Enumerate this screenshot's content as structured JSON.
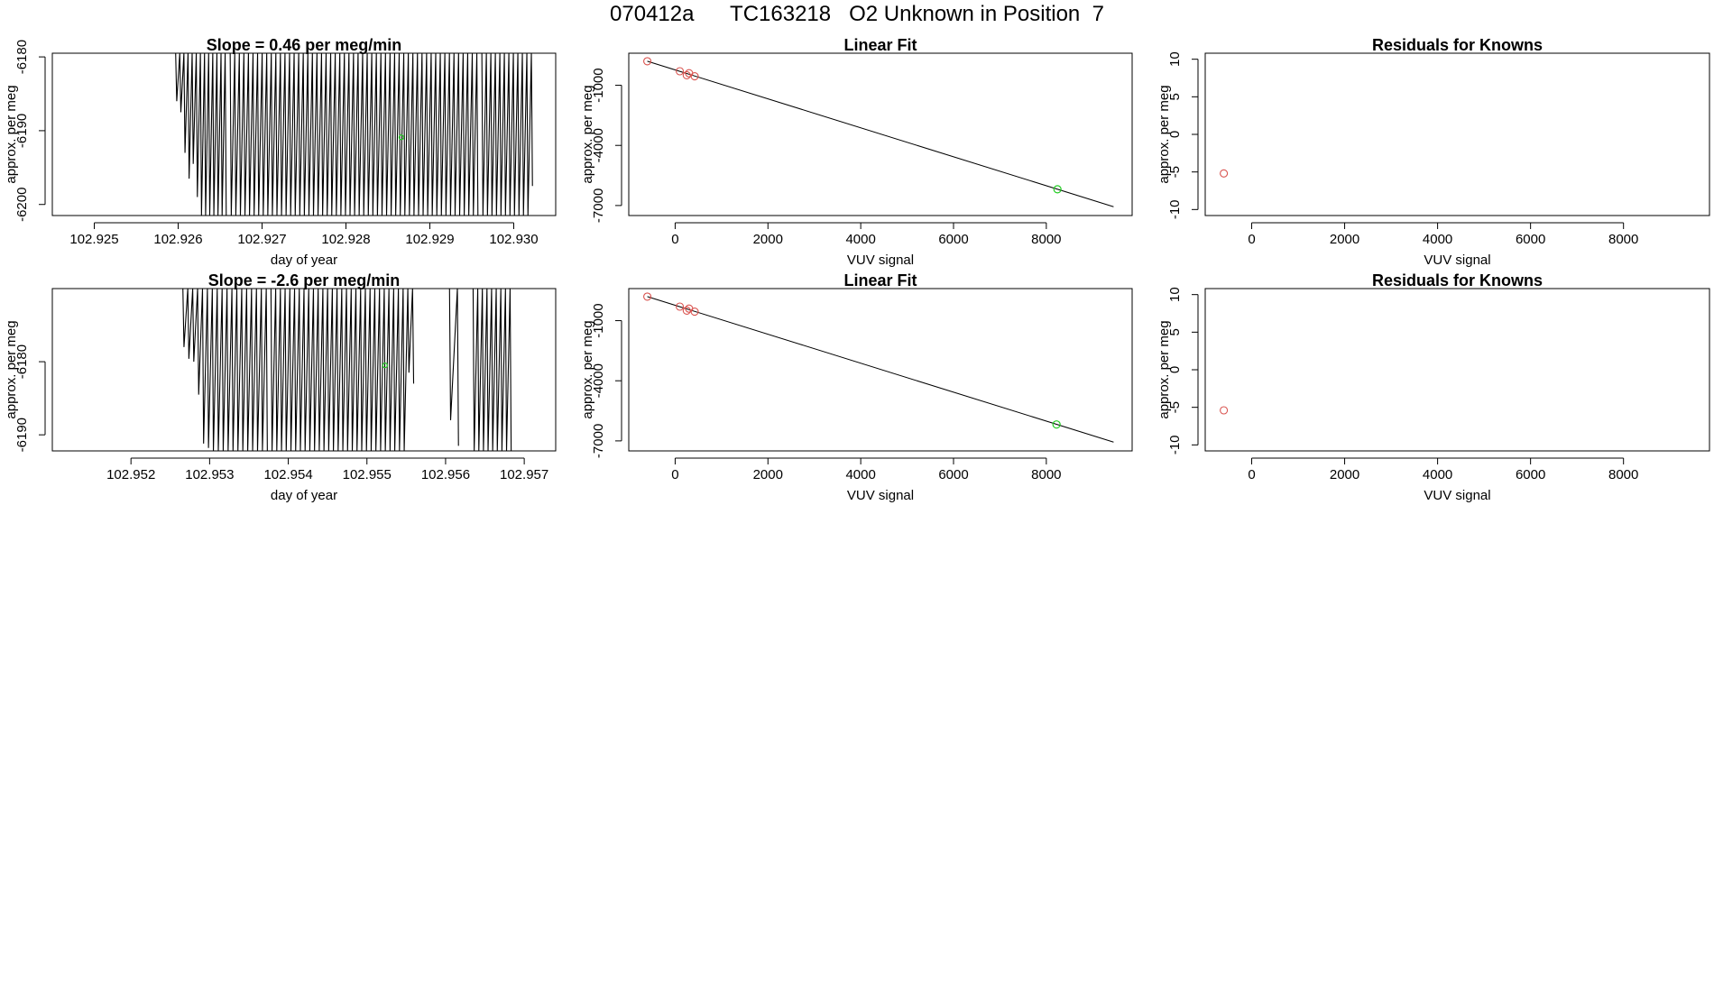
{
  "page_title": "070412a      TC163218   O2 Unknown in Position  7",
  "colors": {
    "axis": "#000000",
    "known_point": "#d9534f",
    "unknown_point": "#22cc22",
    "line": "#000000"
  },
  "chart_data": [
    {
      "id": "timeseries-1",
      "type": "line",
      "title": "Slope =  0.46  per meg/min",
      "xlabel": "day of year",
      "ylabel": "approx. per meg",
      "xlim": [
        102.9245,
        102.9305
      ],
      "ylim": [
        -6201.5,
        -6179.5
      ],
      "xticks": [
        102.925,
        102.926,
        102.927,
        102.928,
        102.929,
        102.93
      ],
      "xtick_labels": [
        "102.925",
        "102.926",
        "102.927",
        "102.928",
        "102.929",
        "102.930"
      ],
      "yticks": [
        -6180,
        -6190,
        -6200
      ],
      "ytick_labels": [
        "-6180",
        "-6190",
        "-6200"
      ],
      "series": [
        {
          "name": "segment-a",
          "x_start": 102.92597,
          "x_end": 102.92656,
          "n": 13,
          "values": [
            -6186,
            -6187.5,
            -6193,
            -6196.5,
            -6194.5,
            -6199,
            -6201.5,
            -6201.5,
            -6201.5,
            -6201.5,
            -6201.5,
            -6201.5,
            -6201.5
          ]
        },
        {
          "name": "segment-b",
          "x_start": 102.92662,
          "x_end": 102.92956,
          "n": 55,
          "values": [
            -6201.5
          ]
        },
        {
          "name": "segment-c",
          "x_start": 102.92962,
          "x_end": 102.93021,
          "n": 12,
          "values": [
            -6201.5,
            -6201.5,
            -6201.5,
            -6201.5,
            -6201.5,
            -6201.5,
            -6201.5,
            -6201.5,
            -6201.5,
            -6201.5,
            -6201.5,
            -6197.5
          ]
        }
      ],
      "marker": {
        "x": 102.92866,
        "y": -6190.9
      }
    },
    {
      "id": "linear-fit-1",
      "type": "scatter",
      "title": "Linear Fit",
      "xlabel": "VUV signal",
      "ylabel": "approx. per meg",
      "xlim": [
        -1000,
        9850
      ],
      "ylim": [
        -7500,
        600
      ],
      "xticks": [
        0,
        2000,
        4000,
        6000,
        8000
      ],
      "xtick_labels": [
        "0",
        "2000",
        "4000",
        "6000",
        "8000"
      ],
      "yticks": [
        -1000,
        -4000,
        -7000
      ],
      "ytick_labels": [
        "-1000",
        "-4000",
        "-7000"
      ],
      "knowns": [
        {
          "x": -600,
          "y": 200
        },
        {
          "x": 100,
          "y": -300
        },
        {
          "x": 250,
          "y": -500
        },
        {
          "x": 300,
          "y": -400
        },
        {
          "x": 420,
          "y": -550
        }
      ],
      "unknown": {
        "x": 8240,
        "y": -6190
      },
      "fit_line": {
        "x1": -600,
        "y1": 200,
        "x2": 9450,
        "y2": -7060
      }
    },
    {
      "id": "residuals-1",
      "type": "scatter",
      "title": "Residuals for Knowns",
      "xlabel": "VUV signal",
      "ylabel": "approx. per meg",
      "xlim": [
        -1000,
        9850
      ],
      "ylim": [
        -10.8,
        10.8
      ],
      "xticks": [
        0,
        2000,
        4000,
        6000,
        8000
      ],
      "xtick_labels": [
        "0",
        "2000",
        "4000",
        "6000",
        "8000"
      ],
      "yticks": [
        10,
        5,
        0,
        -5,
        -10
      ],
      "ytick_labels": [
        "10",
        "5",
        "0",
        "-5",
        "-10"
      ],
      "knowns": [
        {
          "x": -600,
          "y": -5.2
        }
      ]
    },
    {
      "id": "timeseries-2",
      "type": "line",
      "title": "Slope =  -2.6  per meg/min",
      "xlabel": "day of year",
      "ylabel": "approx. per meg",
      "xlim": [
        102.951,
        102.9574
      ],
      "ylim": [
        -6192.2,
        -6170.0
      ],
      "xticks": [
        102.952,
        102.953,
        102.954,
        102.955,
        102.956,
        102.957
      ],
      "xtick_labels": [
        "102.952",
        "102.953",
        "102.954",
        "102.955",
        "102.956",
        "102.957"
      ],
      "yticks": [
        -6180,
        -6190
      ],
      "ytick_labels": [
        "-6180",
        "-6190"
      ],
      "series": [
        {
          "name": "segment-a",
          "x_start": 102.95266,
          "x_end": 102.95372,
          "n": 18,
          "values": [
            -6178,
            -6179.6,
            -6180,
            -6184.5,
            -6191.2,
            -6191.8,
            -6192.2,
            -6192.2,
            -6192.2,
            -6192.2,
            -6192.2,
            -6192.2,
            -6192.2,
            -6192.2,
            -6192.2,
            -6192.2,
            -6192.2,
            -6192.2
          ]
        },
        {
          "name": "segment-b",
          "x_start": 102.95378,
          "x_end": 102.95558,
          "n": 31,
          "values": [
            -6192.2,
            -6192.2,
            -6192.2,
            -6192.2,
            -6192.2,
            -6192.2,
            -6192.2,
            -6192.2,
            -6192.2,
            -6192.2,
            -6192.2,
            -6192.2,
            -6192.2,
            -6192.2,
            -6192.2,
            -6192.2,
            -6192.2,
            -6192.2,
            -6192.2,
            -6192.2,
            -6192.2,
            -6192.2,
            -6192.2,
            -6192.2,
            -6192.2,
            -6192.2,
            -6192.2,
            -6192.2,
            -6192.2,
            -6181.5,
            -6183
          ]
        },
        {
          "name": "segment-c",
          "x_start": 102.95605,
          "x_end": 102.95615,
          "n": 2,
          "values": [
            -6188,
            -6191.5
          ]
        },
        {
          "name": "segment-d",
          "x_start": 102.95635,
          "x_end": 102.95682,
          "n": 9,
          "values": [
            -6192.2
          ]
        }
      ],
      "marker": {
        "x": 102.95523,
        "y": -6180.5
      }
    },
    {
      "id": "linear-fit-2",
      "type": "scatter",
      "title": "Linear Fit",
      "xlabel": "VUV signal",
      "ylabel": "approx. per meg",
      "xlim": [
        -1000,
        9850
      ],
      "ylim": [
        -7500,
        600
      ],
      "xticks": [
        0,
        2000,
        4000,
        6000,
        8000
      ],
      "xtick_labels": [
        "0",
        "2000",
        "4000",
        "6000",
        "8000"
      ],
      "yticks": [
        -1000,
        -4000,
        -7000
      ],
      "ytick_labels": [
        "-1000",
        "-4000",
        "-7000"
      ],
      "knowns": [
        {
          "x": -600,
          "y": 200
        },
        {
          "x": 100,
          "y": -300
        },
        {
          "x": 250,
          "y": -500
        },
        {
          "x": 300,
          "y": -400
        },
        {
          "x": 420,
          "y": -550
        }
      ],
      "unknown": {
        "x": 8220,
        "y": -6180
      },
      "fit_line": {
        "x1": -600,
        "y1": 200,
        "x2": 9450,
        "y2": -7060
      }
    },
    {
      "id": "residuals-2",
      "type": "scatter",
      "title": "Residuals for Knowns",
      "xlabel": "VUV signal",
      "ylabel": "approx. per meg",
      "xlim": [
        -1000,
        9850
      ],
      "ylim": [
        -10.8,
        10.8
      ],
      "xticks": [
        0,
        2000,
        4000,
        6000,
        8000
      ],
      "xtick_labels": [
        "0",
        "2000",
        "4000",
        "6000",
        "8000"
      ],
      "yticks": [
        10,
        5,
        0,
        -5,
        -10
      ],
      "ytick_labels": [
        "10",
        "5",
        "0",
        "-5",
        "-10"
      ],
      "knowns": [
        {
          "x": -600,
          "y": -5.4
        }
      ]
    }
  ]
}
